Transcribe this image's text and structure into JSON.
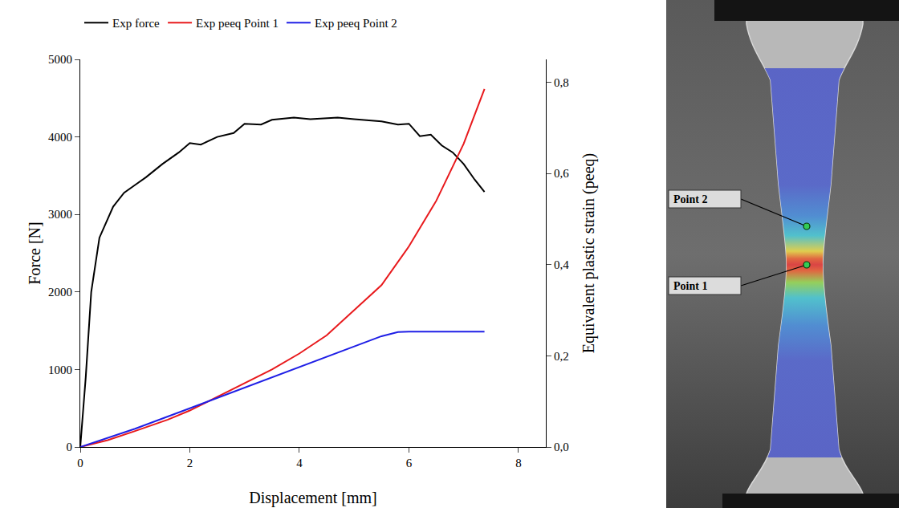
{
  "chart_data": {
    "type": "line",
    "x_label": "Displacement [mm]",
    "y_label": "Force [N]",
    "y2_label": "Equivalent plastic strain (peeq)",
    "xlim": [
      0,
      8.5
    ],
    "xticks": [
      0,
      2,
      4,
      6,
      8
    ],
    "ylim": [
      0,
      5000
    ],
    "yticks": [
      0,
      1000,
      2000,
      3000,
      4000,
      5000
    ],
    "y2lim": [
      0,
      0.85
    ],
    "y2ticks": [
      {
        "value": 0,
        "label": "0,0"
      },
      {
        "value": 0.2,
        "label": "0,2"
      },
      {
        "value": 0.4,
        "label": "0,4"
      },
      {
        "value": 0.6,
        "label": "0,6"
      },
      {
        "value": 0.8,
        "label": "0,8"
      }
    ],
    "grid": false,
    "legend": "top",
    "series": [
      {
        "name": "Exp force",
        "color": "#000000",
        "x": [
          0,
          0.1,
          0.2,
          0.35,
          0.6,
          0.8,
          1.0,
          1.2,
          1.5,
          1.8,
          2.0,
          2.2,
          2.5,
          2.8,
          3.0,
          3.3,
          3.5,
          3.9,
          4.2,
          4.7,
          5.0,
          5.5,
          5.8,
          6.0,
          6.2,
          6.4,
          6.6,
          6.8,
          7.0,
          7.2,
          7.38
        ],
        "values": [
          0,
          900,
          2000,
          2700,
          3100,
          3280,
          3380,
          3480,
          3650,
          3800,
          3920,
          3900,
          4000,
          4050,
          4170,
          4160,
          4220,
          4250,
          4230,
          4250,
          4230,
          4200,
          4160,
          4170,
          4010,
          4030,
          3890,
          3800,
          3650,
          3450,
          3290
        ]
      },
      {
        "name": "Exp peeq Point 1",
        "color": "#e8191c",
        "axis": "y2",
        "x": [
          0,
          0.5,
          1.0,
          1.6,
          2.0,
          2.5,
          3.0,
          3.5,
          4.0,
          4.5,
          5.0,
          5.5,
          6.0,
          6.5,
          7.0,
          7.2,
          7.38
        ],
        "values": [
          0,
          0.015,
          0.035,
          0.06,
          0.08,
          0.11,
          0.14,
          0.17,
          0.205,
          0.245,
          0.3,
          0.355,
          0.44,
          0.54,
          0.665,
          0.73,
          0.785
        ]
      },
      {
        "name": "Exp peeq Point 2",
        "color": "#1f1fe6",
        "axis": "y2",
        "x": [
          0,
          1.0,
          2.0,
          3.0,
          4.0,
          5.0,
          5.5,
          5.8,
          6.0,
          7.38
        ],
        "values": [
          0,
          0.04,
          0.085,
          0.13,
          0.175,
          0.22,
          0.243,
          0.252,
          0.253,
          0.253
        ]
      }
    ]
  },
  "image": {
    "labels": [
      {
        "text": "Point 1"
      },
      {
        "text": "Point 2"
      }
    ]
  }
}
